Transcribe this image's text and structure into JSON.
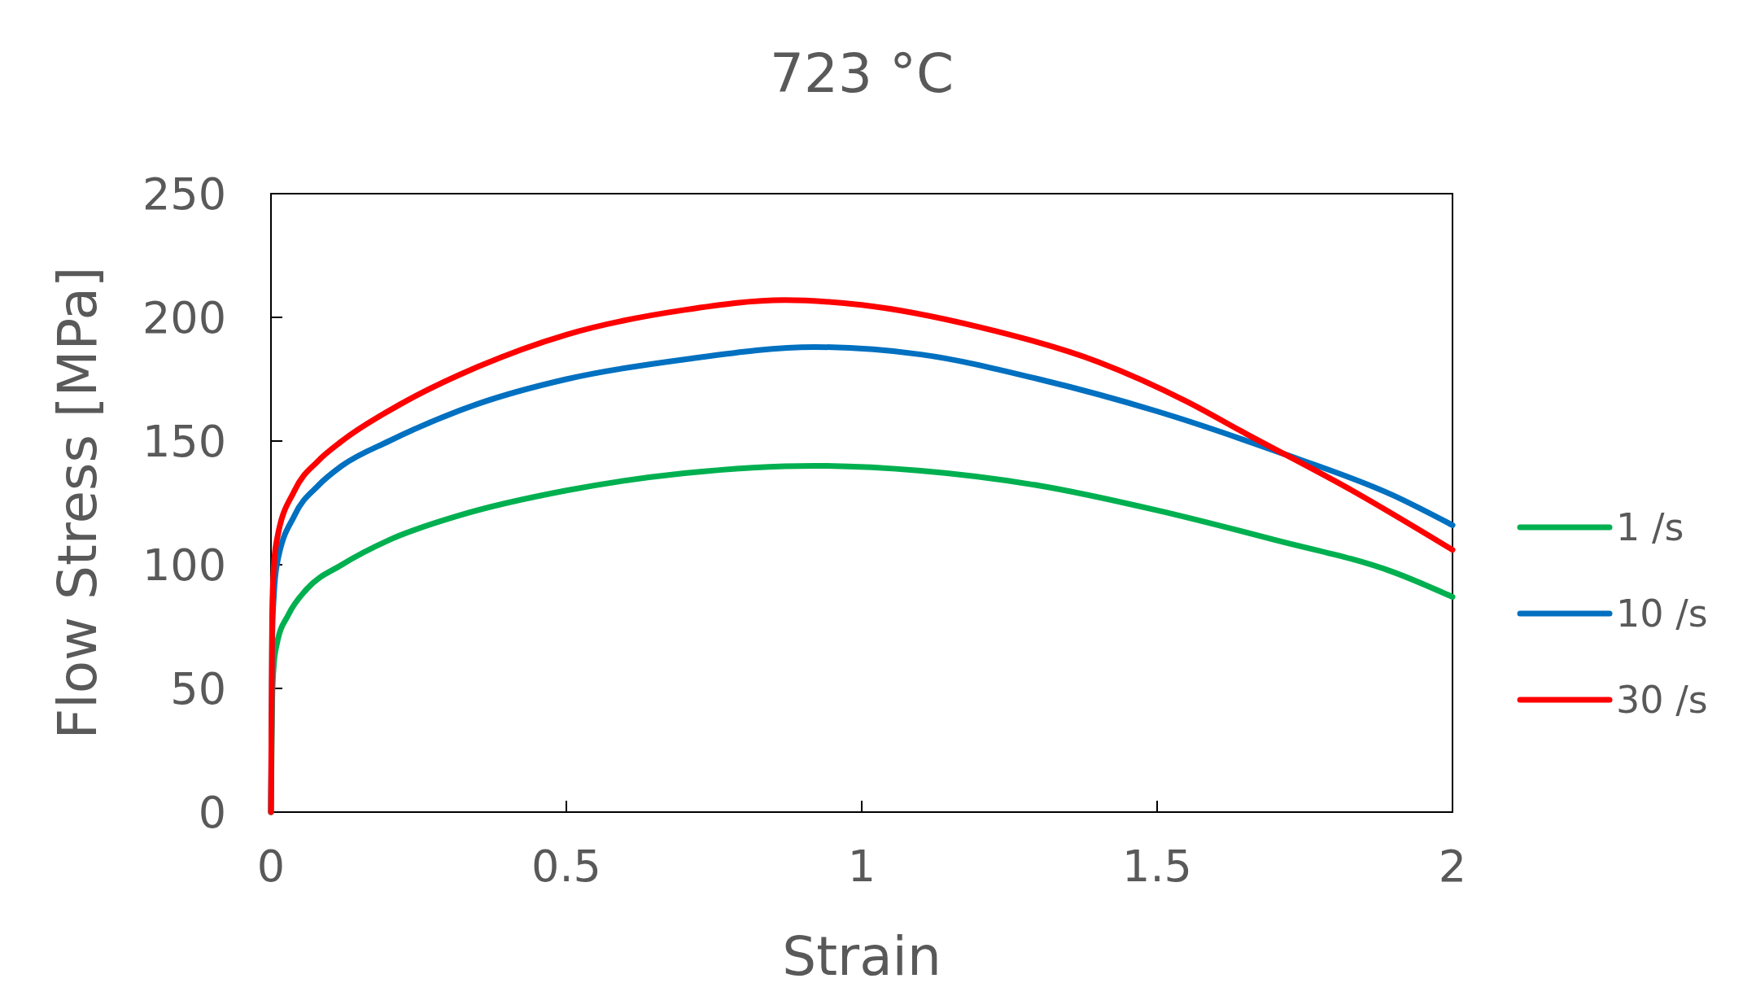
{
  "chart_data": {
    "type": "line",
    "title": "723 °C",
    "xlabel": "Strain",
    "ylabel": "Flow Stress [MPa]",
    "xlim": [
      0,
      2
    ],
    "xticks": [
      0,
      0.5,
      1,
      1.5,
      2
    ],
    "ylim": [
      0,
      250
    ],
    "yticks": [
      0,
      50,
      100,
      150,
      200,
      250
    ],
    "grid": false,
    "legend": "right",
    "line_style": "solid",
    "series": [
      {
        "name": "1 /s",
        "color": "#00b050",
        "x": [
          0,
          0.002,
          0.005,
          0.01,
          0.03,
          0.06,
          0.12,
          0.2,
          0.32,
          0.5,
          0.7,
          0.92,
          1.1,
          1.3,
          1.5,
          1.7,
          1.9,
          2.0
        ],
        "values": [
          0,
          45,
          60,
          68,
          80,
          90,
          100,
          110,
          120,
          130,
          137,
          140,
          138,
          132,
          122,
          110,
          97,
          87
        ]
      },
      {
        "name": "10 /s",
        "color": "#0070c0",
        "x": [
          0,
          0.002,
          0.005,
          0.01,
          0.04,
          0.08,
          0.12,
          0.2,
          0.35,
          0.5,
          0.7,
          0.92,
          1.1,
          1.3,
          1.5,
          1.7,
          1.9,
          2.0
        ],
        "values": [
          0,
          70,
          88,
          100,
          120,
          132,
          140,
          150,
          165,
          175,
          183,
          188,
          185,
          175,
          162,
          146,
          128,
          116
        ]
      },
      {
        "name": "30 /s",
        "color": "#ff0000",
        "x": [
          0,
          0.002,
          0.005,
          0.01,
          0.04,
          0.08,
          0.12,
          0.22,
          0.35,
          0.5,
          0.7,
          0.87,
          1.0,
          1.2,
          1.4,
          1.55,
          1.65,
          1.83,
          2.0
        ],
        "values": [
          0,
          80,
          100,
          110,
          130,
          142,
          150,
          165,
          180,
          193,
          203,
          207,
          205,
          196,
          182,
          166,
          153,
          130,
          106
        ]
      }
    ]
  }
}
